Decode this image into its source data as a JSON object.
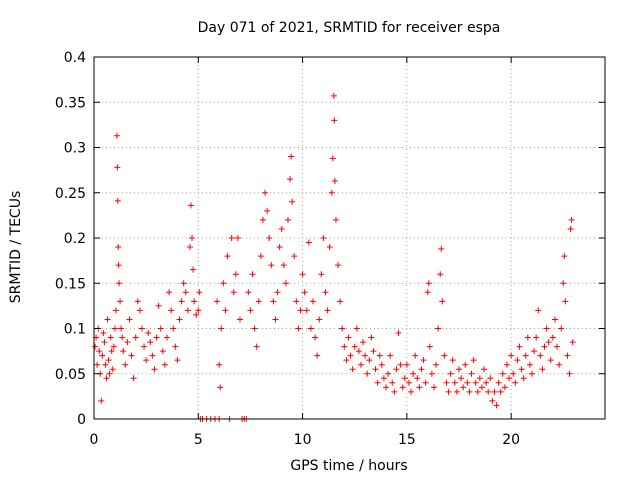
{
  "colors": {
    "series": "#ff0000",
    "axis": "#000000",
    "grid": "#a0a0a0",
    "background": "#ffffff"
  },
  "chart_data": {
    "type": "scatter",
    "title": "Day 071 of 2021, SRMTID for receiver espa",
    "xlabel": "GPS time / hours",
    "ylabel": "SRMTID / TECUs",
    "xlim": [
      0,
      24.5
    ],
    "ylim": [
      0,
      0.4
    ],
    "xticks": [
      0,
      5,
      10,
      15,
      20
    ],
    "xtick_labels": [
      "0",
      "5",
      "10",
      "15",
      "20"
    ],
    "yticks": [
      0,
      0.05,
      0.1,
      0.15,
      0.2,
      0.25,
      0.3,
      0.35,
      0.4
    ],
    "ytick_labels": [
      "0",
      "0.05",
      "0.1",
      "0.15",
      "0.2",
      "0.25",
      "0.3",
      "0.35",
      "0.4"
    ],
    "grid": true,
    "marker": "plus",
    "series": [
      {
        "name": "SRMTID",
        "points": [
          [
            0.05,
            0.08
          ],
          [
            0.1,
            0.09
          ],
          [
            0.15,
            0.06
          ],
          [
            0.2,
            0.1
          ],
          [
            0.25,
            0.075
          ],
          [
            0.3,
            0.05
          ],
          [
            0.35,
            0.02
          ],
          [
            0.4,
            0.07
          ],
          [
            0.45,
            0.095
          ],
          [
            0.5,
            0.085
          ],
          [
            0.55,
            0.06
          ],
          [
            0.6,
            0.045
          ],
          [
            0.65,
            0.11
          ],
          [
            0.7,
            0.065
          ],
          [
            0.75,
            0.05
          ],
          [
            0.8,
            0.09
          ],
          [
            0.85,
            0.075
          ],
          [
            0.9,
            0.055
          ],
          [
            0.95,
            0.08
          ],
          [
            1.0,
            0.1
          ],
          [
            1.05,
            0.12
          ],
          [
            1.1,
            0.313
          ],
          [
            1.12,
            0.278
          ],
          [
            1.14,
            0.241
          ],
          [
            1.16,
            0.19
          ],
          [
            1.18,
            0.17
          ],
          [
            1.2,
            0.15
          ],
          [
            1.25,
            0.13
          ],
          [
            1.3,
            0.1
          ],
          [
            1.35,
            0.09
          ],
          [
            1.4,
            0.075
          ],
          [
            1.5,
            0.06
          ],
          [
            1.6,
            0.085
          ],
          [
            1.7,
            0.11
          ],
          [
            1.8,
            0.07
          ],
          [
            1.9,
            0.045
          ],
          [
            2.0,
            0.09
          ],
          [
            2.1,
            0.13
          ],
          [
            2.2,
            0.12
          ],
          [
            2.3,
            0.1
          ],
          [
            2.4,
            0.08
          ],
          [
            2.5,
            0.065
          ],
          [
            2.6,
            0.095
          ],
          [
            2.7,
            0.085
          ],
          [
            2.8,
            0.07
          ],
          [
            2.9,
            0.055
          ],
          [
            3.0,
            0.09
          ],
          [
            3.1,
            0.125
          ],
          [
            3.2,
            0.1
          ],
          [
            3.3,
            0.075
          ],
          [
            3.4,
            0.06
          ],
          [
            3.5,
            0.09
          ],
          [
            3.6,
            0.14
          ],
          [
            3.7,
            0.12
          ],
          [
            3.8,
            0.1
          ],
          [
            3.9,
            0.08
          ],
          [
            4.0,
            0.065
          ],
          [
            4.1,
            0.11
          ],
          [
            4.2,
            0.13
          ],
          [
            4.3,
            0.15
          ],
          [
            4.4,
            0.14
          ],
          [
            4.5,
            0.12
          ],
          [
            4.6,
            0.19
          ],
          [
            4.65,
            0.236
          ],
          [
            4.7,
            0.2
          ],
          [
            4.75,
            0.165
          ],
          [
            4.8,
            0.13
          ],
          [
            4.9,
            0.115
          ],
          [
            5.0,
            0.12
          ],
          [
            5.05,
            0.14
          ],
          [
            5.1,
            0.0
          ],
          [
            5.2,
            0.0
          ],
          [
            5.4,
            0.0
          ],
          [
            5.6,
            0.0
          ],
          [
            5.8,
            0.0
          ],
          [
            6.0,
            0.0
          ],
          [
            5.9,
            0.13
          ],
          [
            6.0,
            0.06
          ],
          [
            6.05,
            0.035
          ],
          [
            6.1,
            0.1
          ],
          [
            6.2,
            0.15
          ],
          [
            6.3,
            0.12
          ],
          [
            6.4,
            0.18
          ],
          [
            6.5,
            0.0
          ],
          [
            6.6,
            0.2
          ],
          [
            6.7,
            0.14
          ],
          [
            6.8,
            0.16
          ],
          [
            6.9,
            0.2
          ],
          [
            7.0,
            0.11
          ],
          [
            7.1,
            0.0
          ],
          [
            7.2,
            0.0
          ],
          [
            7.3,
            0.0
          ],
          [
            7.4,
            0.14
          ],
          [
            7.5,
            0.12
          ],
          [
            7.6,
            0.16
          ],
          [
            7.7,
            0.1
          ],
          [
            7.8,
            0.08
          ],
          [
            7.9,
            0.13
          ],
          [
            8.0,
            0.18
          ],
          [
            8.1,
            0.22
          ],
          [
            8.2,
            0.25
          ],
          [
            8.3,
            0.23
          ],
          [
            8.4,
            0.2
          ],
          [
            8.5,
            0.17
          ],
          [
            8.6,
            0.13
          ],
          [
            8.7,
            0.11
          ],
          [
            8.8,
            0.14
          ],
          [
            8.9,
            0.19
          ],
          [
            9.0,
            0.21
          ],
          [
            9.1,
            0.17
          ],
          [
            9.2,
            0.15
          ],
          [
            9.3,
            0.22
          ],
          [
            9.4,
            0.265
          ],
          [
            9.45,
            0.29
          ],
          [
            9.5,
            0.24
          ],
          [
            9.6,
            0.18
          ],
          [
            9.7,
            0.13
          ],
          [
            9.8,
            0.1
          ],
          [
            9.9,
            0.12
          ],
          [
            10.0,
            0.16
          ],
          [
            10.1,
            0.14
          ],
          [
            10.2,
            0.12
          ],
          [
            10.3,
            0.195
          ],
          [
            10.4,
            0.1
          ],
          [
            10.5,
            0.13
          ],
          [
            10.6,
            0.09
          ],
          [
            10.7,
            0.07
          ],
          [
            10.8,
            0.11
          ],
          [
            10.9,
            0.16
          ],
          [
            11.0,
            0.2
          ],
          [
            11.1,
            0.14
          ],
          [
            11.2,
            0.12
          ],
          [
            11.3,
            0.19
          ],
          [
            11.4,
            0.25
          ],
          [
            11.45,
            0.288
          ],
          [
            11.5,
            0.357
          ],
          [
            11.52,
            0.33
          ],
          [
            11.55,
            0.263
          ],
          [
            11.6,
            0.22
          ],
          [
            11.7,
            0.17
          ],
          [
            11.8,
            0.13
          ],
          [
            11.9,
            0.1
          ],
          [
            12.0,
            0.08
          ],
          [
            12.1,
            0.065
          ],
          [
            12.2,
            0.09
          ],
          [
            12.3,
            0.07
          ],
          [
            12.4,
            0.055
          ],
          [
            12.5,
            0.08
          ],
          [
            12.6,
            0.1
          ],
          [
            12.7,
            0.075
          ],
          [
            12.8,
            0.06
          ],
          [
            12.9,
            0.085
          ],
          [
            13.0,
            0.07
          ],
          [
            13.1,
            0.05
          ],
          [
            13.2,
            0.065
          ],
          [
            13.3,
            0.09
          ],
          [
            13.4,
            0.075
          ],
          [
            13.5,
            0.055
          ],
          [
            13.6,
            0.04
          ],
          [
            13.7,
            0.07
          ],
          [
            13.8,
            0.06
          ],
          [
            13.9,
            0.045
          ],
          [
            14.0,
            0.035
          ],
          [
            14.1,
            0.05
          ],
          [
            14.2,
            0.07
          ],
          [
            14.3,
            0.04
          ],
          [
            14.4,
            0.03
          ],
          [
            14.5,
            0.055
          ],
          [
            14.6,
            0.095
          ],
          [
            14.7,
            0.06
          ],
          [
            14.8,
            0.035
          ],
          [
            14.9,
            0.045
          ],
          [
            15.0,
            0.06
          ],
          [
            15.1,
            0.04
          ],
          [
            15.2,
            0.03
          ],
          [
            15.3,
            0.05
          ],
          [
            15.4,
            0.07
          ],
          [
            15.5,
            0.045
          ],
          [
            15.6,
            0.035
          ],
          [
            15.7,
            0.055
          ],
          [
            15.8,
            0.065
          ],
          [
            15.9,
            0.04
          ],
          [
            16.0,
            0.14
          ],
          [
            16.05,
            0.15
          ],
          [
            16.1,
            0.08
          ],
          [
            16.2,
            0.05
          ],
          [
            16.3,
            0.035
          ],
          [
            16.4,
            0.06
          ],
          [
            16.5,
            0.1
          ],
          [
            16.6,
            0.16
          ],
          [
            16.65,
            0.188
          ],
          [
            16.7,
            0.13
          ],
          [
            16.8,
            0.07
          ],
          [
            16.9,
            0.04
          ],
          [
            17.0,
            0.03
          ],
          [
            17.1,
            0.05
          ],
          [
            17.2,
            0.065
          ],
          [
            17.3,
            0.04
          ],
          [
            17.4,
            0.03
          ],
          [
            17.5,
            0.055
          ],
          [
            17.6,
            0.045
          ],
          [
            17.7,
            0.035
          ],
          [
            17.8,
            0.06
          ],
          [
            17.9,
            0.04
          ],
          [
            18.0,
            0.03
          ],
          [
            18.1,
            0.05
          ],
          [
            18.2,
            0.065
          ],
          [
            18.3,
            0.04
          ],
          [
            18.4,
            0.03
          ],
          [
            18.5,
            0.045
          ],
          [
            18.6,
            0.035
          ],
          [
            18.7,
            0.055
          ],
          [
            18.8,
            0.04
          ],
          [
            18.9,
            0.03
          ],
          [
            19.0,
            0.045
          ],
          [
            19.1,
            0.02
          ],
          [
            19.2,
            0.03
          ],
          [
            19.3,
            0.015
          ],
          [
            19.4,
            0.04
          ],
          [
            19.5,
            0.03
          ],
          [
            19.6,
            0.05
          ],
          [
            19.7,
            0.035
          ],
          [
            19.8,
            0.06
          ],
          [
            19.9,
            0.045
          ],
          [
            20.0,
            0.07
          ],
          [
            20.1,
            0.05
          ],
          [
            20.2,
            0.04
          ],
          [
            20.3,
            0.065
          ],
          [
            20.4,
            0.08
          ],
          [
            20.5,
            0.055
          ],
          [
            20.6,
            0.045
          ],
          [
            20.7,
            0.07
          ],
          [
            20.8,
            0.09
          ],
          [
            20.9,
            0.06
          ],
          [
            21.0,
            0.05
          ],
          [
            21.1,
            0.075
          ],
          [
            21.2,
            0.09
          ],
          [
            21.3,
            0.12
          ],
          [
            21.4,
            0.07
          ],
          [
            21.5,
            0.055
          ],
          [
            21.6,
            0.08
          ],
          [
            21.7,
            0.1
          ],
          [
            21.8,
            0.085
          ],
          [
            21.9,
            0.065
          ],
          [
            22.0,
            0.09
          ],
          [
            22.1,
            0.11
          ],
          [
            22.2,
            0.08
          ],
          [
            22.3,
            0.06
          ],
          [
            22.4,
            0.1
          ],
          [
            22.5,
            0.15
          ],
          [
            22.55,
            0.18
          ],
          [
            22.6,
            0.13
          ],
          [
            22.7,
            0.07
          ],
          [
            22.8,
            0.05
          ],
          [
            22.85,
            0.21
          ],
          [
            22.9,
            0.22
          ],
          [
            22.95,
            0.085
          ]
        ]
      }
    ]
  }
}
